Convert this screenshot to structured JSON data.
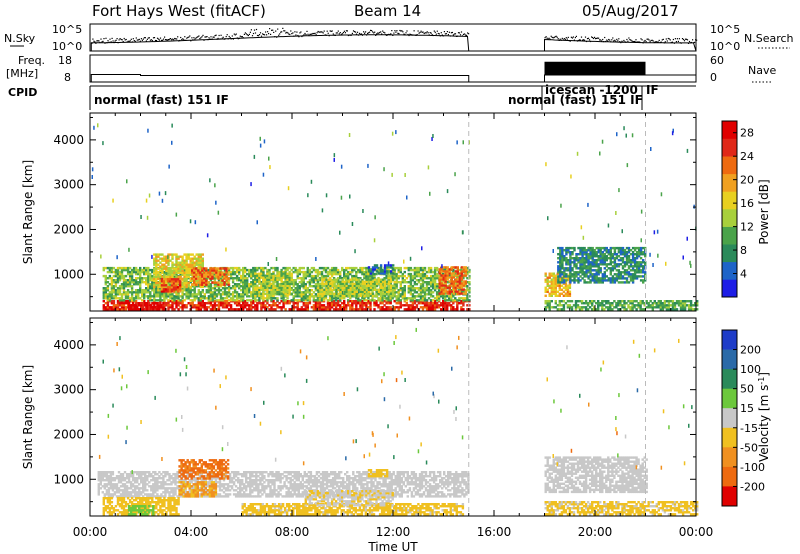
{
  "header": {
    "title": "Fort Hays West (fitACF)",
    "beam": "Beam 14",
    "date": "05/Aug/2017"
  },
  "noise_panel": {
    "left_label": "N.Sky",
    "right_label": "N.Search",
    "left_ticks": [
      "10^5",
      "10^0"
    ],
    "right_ticks": [
      "10^5",
      "10^0"
    ]
  },
  "freq_panel": {
    "left_label_1": "Freq.",
    "left_label_2": "[MHz]",
    "right_label": "Nave",
    "left_ticks": [
      "18",
      "8"
    ],
    "right_ticks": [
      "60",
      "0"
    ]
  },
  "cpid_panel": {
    "label": "CPID",
    "segments": [
      {
        "text": "normal (fast) 151 IF",
        "start_hour": 0.0
      },
      {
        "text": "normal (fast) 151 IF",
        "start_hour": 18.0
      },
      {
        "text": "icescan -1200",
        "start_hour": 18.0
      },
      {
        "text": "IF",
        "start_hour": 22.0
      }
    ]
  },
  "chart_data": [
    {
      "type": "heatmap",
      "name": "Power",
      "xlabel": "",
      "ylabel": "Slant Range [km]",
      "xlim_hours": [
        0,
        24
      ],
      "ylim": [
        180,
        4600
      ],
      "yticks": [
        1000,
        2000,
        3000,
        4000
      ],
      "data_gaps_hours": [
        [
          15.0,
          18.0
        ]
      ],
      "colorbar": {
        "label": "Power [dB]",
        "ticks": [
          4,
          8,
          12,
          16,
          20,
          24,
          28
        ],
        "range": [
          0,
          30
        ],
        "colors": [
          "#1e1ee6",
          "#1e64c8",
          "#2a8a5a",
          "#4aa34a",
          "#a8d03c",
          "#e8d020",
          "#f0a020",
          "#ee6a10",
          "#e02818",
          "#e00000"
        ]
      },
      "regions": [
        {
          "t0": 0.5,
          "t1": 15.0,
          "r0": 200,
          "r1": 400,
          "value": 26
        },
        {
          "t0": 0.5,
          "t1": 15.0,
          "r0": 400,
          "r1": 1150,
          "value": 12
        },
        {
          "t0": 2.5,
          "t1": 4.5,
          "r0": 700,
          "r1": 1450,
          "value": 16
        },
        {
          "t0": 4.0,
          "t1": 5.5,
          "r0": 750,
          "r1": 1150,
          "value": 22
        },
        {
          "t0": 2.8,
          "t1": 3.6,
          "r0": 600,
          "r1": 900,
          "value": 24
        },
        {
          "t0": 1.5,
          "t1": 3.0,
          "r0": 200,
          "r1": 380,
          "value": 29
        },
        {
          "t0": 6.5,
          "t1": 8.0,
          "r0": 500,
          "r1": 1000,
          "value": 14
        },
        {
          "t0": 9.0,
          "t1": 12.0,
          "r0": 500,
          "r1": 900,
          "value": 14
        },
        {
          "t0": 11.0,
          "t1": 12.0,
          "r0": 1000,
          "r1": 1200,
          "value": 6
        },
        {
          "t0": 13.8,
          "t1": 14.9,
          "r0": 550,
          "r1": 1150,
          "value": 22
        },
        {
          "t0": 18.0,
          "t1": 19.0,
          "r0": 500,
          "r1": 1000,
          "value": 18
        },
        {
          "t0": 18.5,
          "t1": 22.0,
          "r0": 800,
          "r1": 1600,
          "value": 8
        },
        {
          "t0": 18.0,
          "t1": 24.0,
          "r0": 200,
          "r1": 400,
          "value": 10
        }
      ]
    },
    {
      "type": "heatmap",
      "name": "Velocity",
      "xlabel": "Time UT",
      "ylabel": "Slant Range [km]",
      "xlim_hours": [
        0,
        24
      ],
      "xticks": [
        "00:00",
        "04:00",
        "08:00",
        "12:00",
        "16:00",
        "20:00",
        "00:00"
      ],
      "ylim": [
        180,
        4600
      ],
      "yticks": [
        1000,
        2000,
        3000,
        4000
      ],
      "data_gaps_hours": [
        [
          15.0,
          18.0
        ]
      ],
      "colorbar": {
        "label": "Velocity [m s^-1]",
        "ticks": [
          "200",
          "100",
          "50",
          "15",
          "-15",
          "-50",
          "-100",
          "-200"
        ],
        "range": [
          -250,
          250
        ],
        "colors": [
          "#1e3cc8",
          "#2a6aa8",
          "#2a8a5a",
          "#6cc83c",
          "#c8c8c8",
          "#f0c020",
          "#f09020",
          "#ee6a10",
          "#e00000"
        ]
      },
      "regions": [
        {
          "t0": 0.3,
          "t1": 15.0,
          "r0": 600,
          "r1": 1150,
          "value": 0
        },
        {
          "t0": 0.5,
          "t1": 3.5,
          "r0": 200,
          "r1": 600,
          "value": -60
        },
        {
          "t0": 1.5,
          "t1": 2.5,
          "r0": 200,
          "r1": 400,
          "value": 60
        },
        {
          "t0": 3.5,
          "t1": 5.5,
          "r0": 1000,
          "r1": 1450,
          "value": -150
        },
        {
          "t0": 3.5,
          "t1": 5.0,
          "r0": 600,
          "r1": 950,
          "value": -90
        },
        {
          "t0": 6.0,
          "t1": 14.8,
          "r0": 200,
          "r1": 450,
          "value": -45
        },
        {
          "t0": 8.5,
          "t1": 12.0,
          "r0": 400,
          "r1": 750,
          "value": -20
        },
        {
          "t0": 11.0,
          "t1": 11.8,
          "r0": 1050,
          "r1": 1200,
          "value": -60
        },
        {
          "t0": 18.0,
          "t1": 22.0,
          "r0": 700,
          "r1": 1500,
          "value": 0
        },
        {
          "t0": 18.0,
          "t1": 24.0,
          "r0": 200,
          "r1": 500,
          "value": -40
        }
      ]
    }
  ]
}
